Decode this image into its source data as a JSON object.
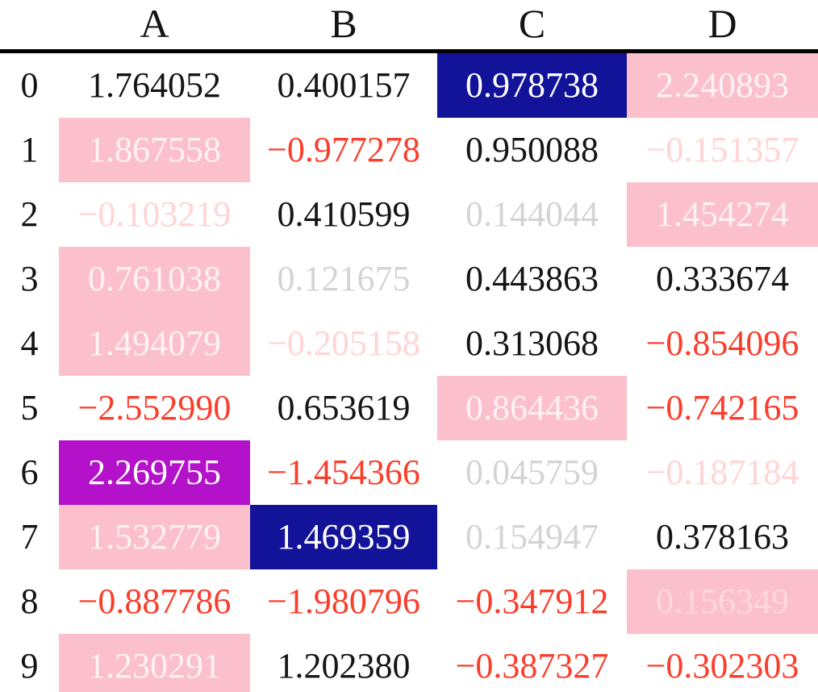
{
  "chart_data": {
    "type": "table",
    "title": "",
    "columns": [
      "A",
      "B",
      "C",
      "D"
    ],
    "index": [
      "0",
      "1",
      "2",
      "3",
      "4",
      "5",
      "6",
      "7",
      "8",
      "9"
    ],
    "values": [
      [
        1.764052,
        0.400157,
        0.978738,
        2.240893
      ],
      [
        1.867558,
        -0.977278,
        0.950088,
        -0.151357
      ],
      [
        -0.103219,
        0.410599,
        0.144044,
        1.454274
      ],
      [
        0.761038,
        0.121675,
        0.443863,
        0.333674
      ],
      [
        1.494079,
        -0.205158,
        0.313068,
        -0.854096
      ],
      [
        -2.55299,
        0.653619,
        0.864436,
        -0.742165
      ],
      [
        2.269755,
        -1.454366,
        0.045759,
        -0.187184
      ],
      [
        1.532779,
        1.469359,
        0.154947,
        0.378163
      ],
      [
        -0.887786,
        -1.980796,
        -0.347912,
        0.156349
      ],
      [
        1.230291,
        1.20238,
        -0.387327,
        -0.302303
      ]
    ],
    "layout": {
      "grid": false,
      "header_rule": "thick black line below column headers"
    }
  },
  "table": {
    "columns": [
      "A",
      "B",
      "C",
      "D"
    ],
    "index": [
      "0",
      "1",
      "2",
      "3",
      "4",
      "5",
      "6",
      "7",
      "8",
      "9"
    ],
    "colors": {
      "bg": {
        "pink": "#FCBFCC",
        "navy": "#131399",
        "magenta": "#B411CB"
      },
      "fg": {
        "black": "#151515",
        "red": "#FB3D2B",
        "gray": "#D4D4D4",
        "faint_pink": "#FFD5D5",
        "white": "#FFFFFF",
        "pink_white": "#FDF2F4",
        "pink_faint": "#FED8DF"
      }
    },
    "rows": [
      [
        {
          "v": "1.764052",
          "bg": "none",
          "fg": "black"
        },
        {
          "v": "0.400157",
          "bg": "none",
          "fg": "black"
        },
        {
          "v": "0.978738",
          "bg": "navy",
          "fg": "white"
        },
        {
          "v": "2.240893",
          "bg": "pink",
          "fg": "pink_white"
        }
      ],
      [
        {
          "v": "1.867558",
          "bg": "pink",
          "fg": "pink_white"
        },
        {
          "v": "−0.977278",
          "bg": "none",
          "fg": "red"
        },
        {
          "v": "0.950088",
          "bg": "none",
          "fg": "black"
        },
        {
          "v": "−0.151357",
          "bg": "none",
          "fg": "faint_pink"
        }
      ],
      [
        {
          "v": "−0.103219",
          "bg": "none",
          "fg": "faint_pink"
        },
        {
          "v": "0.410599",
          "bg": "none",
          "fg": "black"
        },
        {
          "v": "0.144044",
          "bg": "none",
          "fg": "gray"
        },
        {
          "v": "1.454274",
          "bg": "pink",
          "fg": "pink_white"
        }
      ],
      [
        {
          "v": "0.761038",
          "bg": "pink",
          "fg": "pink_white"
        },
        {
          "v": "0.121675",
          "bg": "none",
          "fg": "gray"
        },
        {
          "v": "0.443863",
          "bg": "none",
          "fg": "black"
        },
        {
          "v": "0.333674",
          "bg": "none",
          "fg": "black"
        }
      ],
      [
        {
          "v": "1.494079",
          "bg": "pink",
          "fg": "pink_white"
        },
        {
          "v": "−0.205158",
          "bg": "none",
          "fg": "faint_pink"
        },
        {
          "v": "0.313068",
          "bg": "none",
          "fg": "black"
        },
        {
          "v": "−0.854096",
          "bg": "none",
          "fg": "red"
        }
      ],
      [
        {
          "v": "−2.552990",
          "bg": "none",
          "fg": "red"
        },
        {
          "v": "0.653619",
          "bg": "none",
          "fg": "black"
        },
        {
          "v": "0.864436",
          "bg": "pink",
          "fg": "pink_white"
        },
        {
          "v": "−0.742165",
          "bg": "none",
          "fg": "red"
        }
      ],
      [
        {
          "v": "2.269755",
          "bg": "magenta",
          "fg": "white"
        },
        {
          "v": "−1.454366",
          "bg": "none",
          "fg": "red"
        },
        {
          "v": "0.045759",
          "bg": "none",
          "fg": "gray"
        },
        {
          "v": "−0.187184",
          "bg": "none",
          "fg": "faint_pink"
        }
      ],
      [
        {
          "v": "1.532779",
          "bg": "pink",
          "fg": "pink_white"
        },
        {
          "v": "1.469359",
          "bg": "navy",
          "fg": "white"
        },
        {
          "v": "0.154947",
          "bg": "none",
          "fg": "gray"
        },
        {
          "v": "0.378163",
          "bg": "none",
          "fg": "black"
        }
      ],
      [
        {
          "v": "−0.887786",
          "bg": "none",
          "fg": "red"
        },
        {
          "v": "−1.980796",
          "bg": "none",
          "fg": "red"
        },
        {
          "v": "−0.347912",
          "bg": "none",
          "fg": "red"
        },
        {
          "v": "0.156349",
          "bg": "pink",
          "fg": "pink_faint"
        }
      ],
      [
        {
          "v": "1.230291",
          "bg": "pink",
          "fg": "pink_white"
        },
        {
          "v": "1.202380",
          "bg": "none",
          "fg": "black"
        },
        {
          "v": "−0.387327",
          "bg": "none",
          "fg": "red"
        },
        {
          "v": "−0.302303",
          "bg": "none",
          "fg": "red"
        }
      ]
    ]
  }
}
